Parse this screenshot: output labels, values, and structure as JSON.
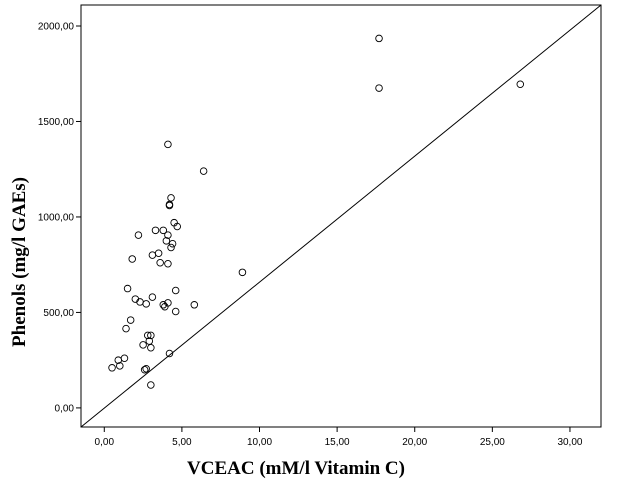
{
  "chart_data": {
    "type": "scatter",
    "title": "",
    "xlabel": "VCEAC (mM/l Vitamin C)",
    "ylabel": "Phenols (mg/l GAEs)",
    "xlim": [
      -1.5,
      32.0
    ],
    "ylim": [
      -100,
      2110
    ],
    "xticks": [
      0,
      5,
      10,
      15,
      20,
      25,
      30
    ],
    "xtick_labels": [
      "0,00",
      "5,00",
      "10,00",
      "15,00",
      "20,00",
      "25,00",
      "30,00"
    ],
    "yticks": [
      0,
      500,
      1000,
      1500,
      2000
    ],
    "ytick_labels": [
      "0,00",
      "500,00",
      "1000,00",
      "1500,00",
      "2000,00"
    ],
    "grid": false,
    "marker": "open-circle",
    "reference_line": {
      "from": [
        -1.5,
        -100
      ],
      "to": [
        32.0,
        2110
      ]
    },
    "points": [
      [
        0.5,
        210
      ],
      [
        0.9,
        250
      ],
      [
        1.0,
        220
      ],
      [
        1.3,
        260
      ],
      [
        1.4,
        415
      ],
      [
        1.5,
        625
      ],
      [
        1.7,
        460
      ],
      [
        1.8,
        780
      ],
      [
        2.0,
        570
      ],
      [
        2.2,
        905
      ],
      [
        2.3,
        555
      ],
      [
        2.5,
        330
      ],
      [
        2.6,
        200
      ],
      [
        2.7,
        205
      ],
      [
        2.7,
        545
      ],
      [
        2.8,
        380
      ],
      [
        2.9,
        350
      ],
      [
        3.0,
        120
      ],
      [
        3.0,
        315
      ],
      [
        3.0,
        380
      ],
      [
        3.1,
        800
      ],
      [
        3.1,
        580
      ],
      [
        3.3,
        930
      ],
      [
        3.5,
        810
      ],
      [
        3.6,
        760
      ],
      [
        3.8,
        540
      ],
      [
        3.8,
        930
      ],
      [
        3.9,
        530
      ],
      [
        4.0,
        875
      ],
      [
        4.1,
        905
      ],
      [
        4.1,
        755
      ],
      [
        4.1,
        550
      ],
      [
        4.1,
        1380
      ],
      [
        4.2,
        285
      ],
      [
        4.2,
        1065
      ],
      [
        4.3,
        1100
      ],
      [
        4.2,
        1060
      ],
      [
        4.3,
        840
      ],
      [
        4.4,
        860
      ],
      [
        4.5,
        970
      ],
      [
        4.6,
        615
      ],
      [
        4.6,
        505
      ],
      [
        4.7,
        950
      ],
      [
        5.8,
        540
      ],
      [
        6.4,
        1240
      ],
      [
        8.9,
        710
      ],
      [
        17.7,
        1935
      ],
      [
        17.7,
        1675
      ],
      [
        26.8,
        1695
      ]
    ]
  }
}
